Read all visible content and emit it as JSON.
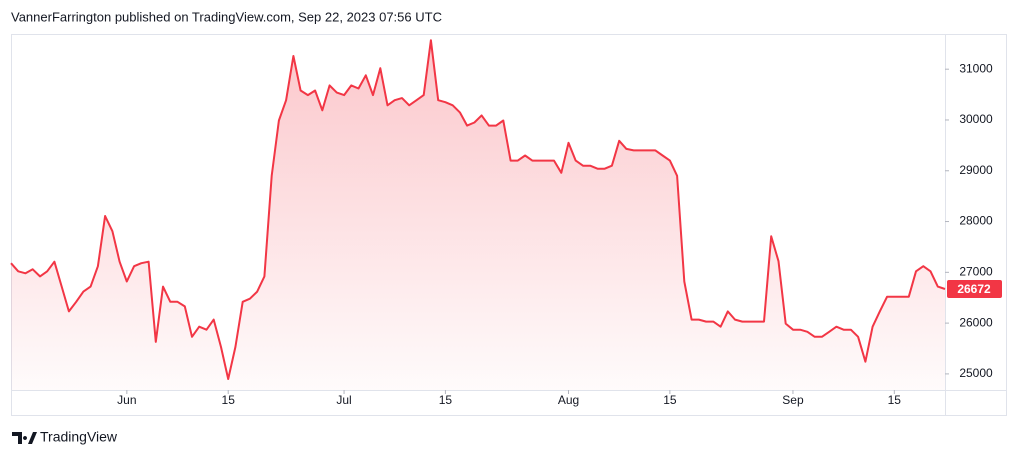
{
  "header": {
    "attribution": "VannerFarrington published on TradingView.com, Sep 22, 2023 07:56 UTC"
  },
  "footer": {
    "brand": "TradingView"
  },
  "chart_data": {
    "type": "area",
    "color": "#f23645",
    "grid": false,
    "x": [
      "05-16",
      "05-17",
      "05-18",
      "05-19",
      "05-20",
      "05-21",
      "05-22",
      "05-23",
      "05-24",
      "05-25",
      "05-26",
      "05-27",
      "05-28",
      "05-29",
      "05-30",
      "05-31",
      "06-01",
      "06-02",
      "06-03",
      "06-04",
      "06-05",
      "06-06",
      "06-07",
      "06-08",
      "06-09",
      "06-10",
      "06-11",
      "06-12",
      "06-13",
      "06-14",
      "06-15",
      "06-16",
      "06-17",
      "06-18",
      "06-19",
      "06-20",
      "06-21",
      "06-22",
      "06-23",
      "06-24",
      "06-25",
      "06-26",
      "06-27",
      "06-28",
      "06-29",
      "06-30",
      "07-01",
      "07-02",
      "07-03",
      "07-04",
      "07-05",
      "07-06",
      "07-07",
      "07-08",
      "07-09",
      "07-10",
      "07-11",
      "07-12",
      "07-13",
      "07-14",
      "07-15",
      "07-16",
      "07-17",
      "07-18",
      "07-19",
      "07-20",
      "07-21",
      "07-22",
      "07-23",
      "07-24",
      "07-25",
      "07-26",
      "07-27",
      "07-28",
      "07-29",
      "07-30",
      "07-31",
      "08-01",
      "08-02",
      "08-03",
      "08-04",
      "08-05",
      "08-06",
      "08-07",
      "08-08",
      "08-09",
      "08-10",
      "08-11",
      "08-12",
      "08-13",
      "08-14",
      "08-15",
      "08-16",
      "08-17",
      "08-18",
      "08-19",
      "08-20",
      "08-21",
      "08-22",
      "08-23",
      "08-24",
      "08-25",
      "08-26",
      "08-27",
      "08-28",
      "08-29",
      "08-30",
      "08-31",
      "09-01",
      "09-02",
      "09-03",
      "09-04",
      "09-05",
      "09-06",
      "09-07",
      "09-08",
      "09-09",
      "09-10",
      "09-11",
      "09-12",
      "09-13",
      "09-14",
      "09-15",
      "09-16",
      "09-17",
      "09-18",
      "09-19",
      "09-20",
      "09-21",
      "09-22"
    ],
    "values": [
      27180,
      27020,
      26980,
      27060,
      26920,
      27020,
      27210,
      26720,
      26230,
      26420,
      26620,
      26720,
      27120,
      28110,
      27810,
      27210,
      26820,
      27120,
      27180,
      27210,
      25630,
      26720,
      26420,
      26420,
      26330,
      25730,
      25930,
      25870,
      26070,
      25530,
      24900,
      25530,
      26420,
      26480,
      26620,
      26920,
      28900,
      29990,
      30390,
      31260,
      30580,
      30490,
      30580,
      30190,
      30680,
      30540,
      30490,
      30680,
      30620,
      30880,
      30490,
      31020,
      30290,
      30390,
      30430,
      30290,
      30390,
      30490,
      31570,
      30390,
      30350,
      30290,
      30150,
      29890,
      29950,
      30090,
      29890,
      29890,
      29990,
      29200,
      29200,
      29300,
      29200,
      29200,
      29200,
      29200,
      28960,
      29550,
      29200,
      29100,
      29100,
      29040,
      29040,
      29100,
      29590,
      29430,
      29400,
      29400,
      29400,
      29400,
      29300,
      29200,
      28900,
      26820,
      26070,
      26070,
      26030,
      26030,
      25930,
      26230,
      26070,
      26030,
      26030,
      26030,
      26030,
      27710,
      27220,
      25990,
      25870,
      25870,
      25830,
      25730,
      25730,
      25830,
      25930,
      25870,
      25870,
      25730,
      25240,
      25930,
      26230,
      26520,
      26520,
      26520,
      26520,
      27020,
      27120,
      27020,
      26720,
      26672
    ],
    "xlim": [
      "05-16",
      "09-22"
    ],
    "xticks": [
      {
        "value": "06-01",
        "label": "Jun"
      },
      {
        "value": "06-15",
        "label": "15"
      },
      {
        "value": "07-01",
        "label": "Jul"
      },
      {
        "value": "07-15",
        "label": "15"
      },
      {
        "value": "08-01",
        "label": "Aug"
      },
      {
        "value": "08-15",
        "label": "15"
      },
      {
        "value": "09-01",
        "label": "Sep"
      },
      {
        "value": "09-15",
        "label": "15"
      }
    ],
    "ylim": [
      24683,
      31693
    ],
    "yticks": [
      25000,
      26000,
      27000,
      28000,
      29000,
      30000,
      31000
    ]
  }
}
